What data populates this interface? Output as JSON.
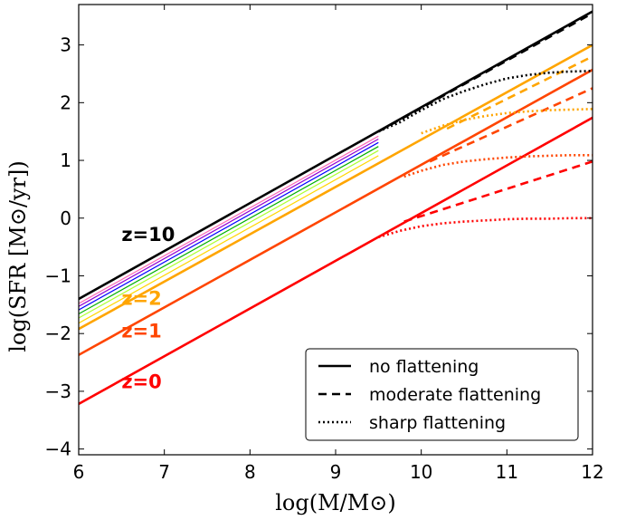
{
  "chart_data": {
    "type": "line",
    "title": "",
    "xlabel": "log(M/M⊙)",
    "ylabel": "log(SFR [M⊙/yr])",
    "xlim": [
      6,
      12
    ],
    "ylim": [
      -4.1,
      3.7
    ],
    "xticks": [
      6,
      7,
      8,
      9,
      10,
      11,
      12
    ],
    "yticks": [
      -4,
      -3,
      -2,
      -1,
      0,
      1,
      2,
      3
    ],
    "xtick_labels": [
      "6",
      "7",
      "8",
      "9",
      "10",
      "11",
      "12"
    ],
    "ytick_labels": [
      "−4",
      "−3",
      "−2",
      "−1",
      "0",
      "1",
      "2",
      "3"
    ],
    "grid": false,
    "legend_position": "lower-right",
    "legend": [
      {
        "label": "no flattening",
        "style": "solid"
      },
      {
        "label": "moderate flattening",
        "style": "dashed"
      },
      {
        "label": "sharp flattening",
        "style": "dotted"
      }
    ],
    "annotations": [
      {
        "text": "z=10",
        "color": "#000000",
        "x": 6.5,
        "y": -0.4
      },
      {
        "text": "z=2",
        "color": "#ffa500",
        "x": 6.5,
        "y": -1.5
      },
      {
        "text": "z=1",
        "color": "#ff4500",
        "x": 6.5,
        "y": -2.07
      },
      {
        "text": "z=0",
        "color": "#ff0000",
        "x": 6.5,
        "y": -2.95
      }
    ],
    "series": [
      {
        "name": "z=0 no flattening",
        "color": "#ff0000",
        "style": "solid",
        "x": [
          6,
          12
        ],
        "y": [
          -3.22,
          1.74
        ]
      },
      {
        "name": "z=1 no flattening",
        "color": "#ff4500",
        "style": "solid",
        "x": [
          6,
          12
        ],
        "y": [
          -2.37,
          2.57
        ]
      },
      {
        "name": "z=2 no flattening",
        "color": "#ffa500",
        "style": "solid",
        "x": [
          6,
          12
        ],
        "y": [
          -1.92,
          3.0
        ]
      },
      {
        "name": "z=10 no flattening",
        "color": "#000000",
        "style": "solid",
        "x": [
          6,
          12
        ],
        "y": [
          -1.4,
          3.58
        ]
      },
      {
        "name": "z=3",
        "color": "#ffd700",
        "style": "solid-thin",
        "x": [
          6,
          9.5
        ],
        "y": [
          -1.82,
          1.08
        ]
      },
      {
        "name": "z=4",
        "color": "#adff2f",
        "style": "solid-thin",
        "x": [
          6,
          9.5
        ],
        "y": [
          -1.73,
          1.17
        ]
      },
      {
        "name": "z=5",
        "color": "#00b000",
        "style": "solid-thin",
        "x": [
          6,
          9.5
        ],
        "y": [
          -1.66,
          1.24
        ]
      },
      {
        "name": "z=6",
        "color": "#0000ff",
        "style": "solid-thin",
        "x": [
          6,
          9.5
        ],
        "y": [
          -1.59,
          1.31
        ]
      },
      {
        "name": "z=7",
        "color": "#9400d3",
        "style": "solid-thin",
        "x": [
          6,
          9.5
        ],
        "y": [
          -1.53,
          1.37
        ]
      },
      {
        "name": "z=8",
        "color": "#ff69b4",
        "style": "solid-thin",
        "x": [
          6,
          9.5
        ],
        "y": [
          -1.48,
          1.42
        ]
      },
      {
        "name": "z=0 moderate flattening",
        "color": "#ff0000",
        "style": "dashed",
        "x": [
          9.8,
          12
        ],
        "y": [
          -0.06,
          0.98
        ]
      },
      {
        "name": "z=1 moderate flattening",
        "color": "#ff4500",
        "style": "dashed",
        "x": [
          10.1,
          12
        ],
        "y": [
          0.98,
          2.25
        ]
      },
      {
        "name": "z=2 moderate flattening",
        "color": "#ffa500",
        "style": "dashed",
        "x": [
          10.3,
          12
        ],
        "y": [
          1.55,
          2.8
        ]
      },
      {
        "name": "z=10 moderate flattening",
        "color": "#000000",
        "style": "dashed",
        "x": [
          9.5,
          12
        ],
        "y": [
          1.5,
          3.55
        ]
      },
      {
        "name": "z=0 sharp flattening",
        "color": "#ff0000",
        "style": "dotted",
        "x": [
          9.5,
          9.75,
          10.0,
          10.25,
          10.5,
          10.75,
          11.0,
          11.25,
          11.5,
          11.75,
          12.0
        ],
        "y": [
          -0.33,
          -0.22,
          -0.14,
          -0.09,
          -0.06,
          -0.04,
          -0.02,
          -0.01,
          -0.01,
          0.0,
          0.0
        ]
      },
      {
        "name": "z=1 sharp flattening",
        "color": "#ff4500",
        "style": "dotted",
        "x": [
          9.8,
          10.0,
          10.25,
          10.5,
          10.75,
          11.0,
          11.25,
          11.5,
          11.75,
          12.0
        ],
        "y": [
          0.72,
          0.82,
          0.92,
          0.98,
          1.02,
          1.05,
          1.07,
          1.08,
          1.09,
          1.09
        ]
      },
      {
        "name": "z=2 sharp flattening",
        "color": "#ffa500",
        "style": "dotted",
        "x": [
          10.0,
          10.25,
          10.5,
          10.75,
          11.0,
          11.25,
          11.5,
          11.75,
          12.0
        ],
        "y": [
          1.47,
          1.6,
          1.7,
          1.77,
          1.82,
          1.85,
          1.87,
          1.88,
          1.89
        ]
      },
      {
        "name": "z=10 sharp flattening",
        "color": "#000000",
        "style": "dotted",
        "x": [
          9.5,
          9.75,
          10.0,
          10.25,
          10.5,
          10.75,
          11.0,
          11.25,
          11.5,
          11.75,
          12.0
        ],
        "y": [
          1.5,
          1.66,
          1.87,
          2.06,
          2.2,
          2.32,
          2.42,
          2.48,
          2.52,
          2.54,
          2.55
        ]
      }
    ]
  }
}
